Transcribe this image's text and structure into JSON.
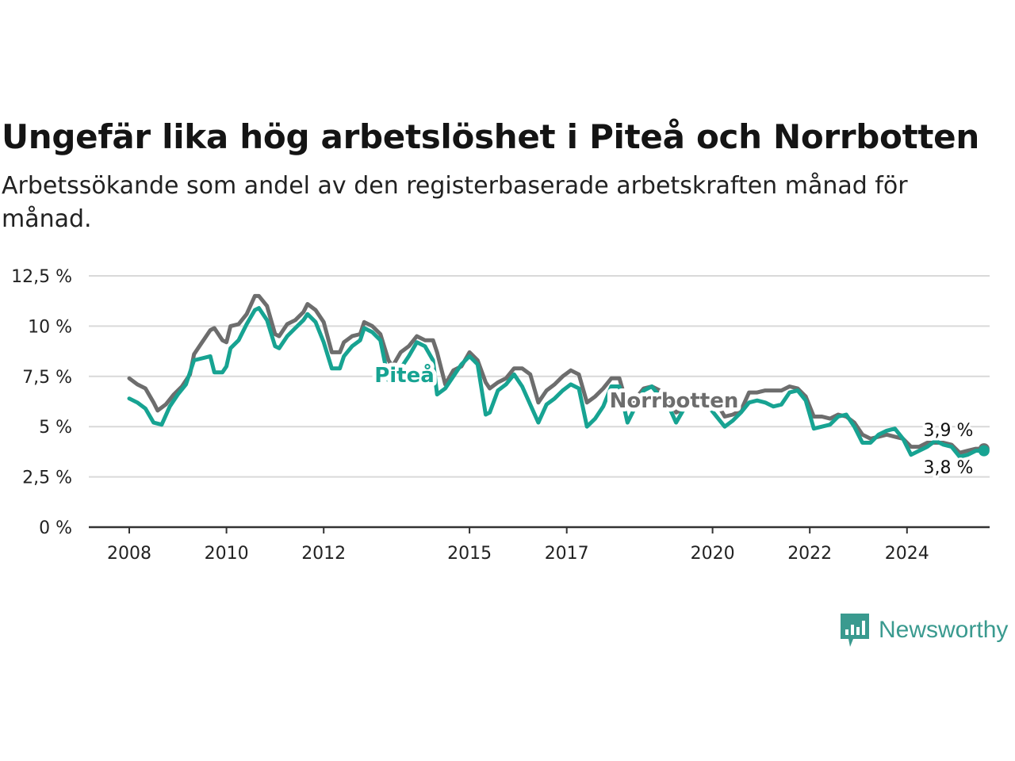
{
  "chart_data": {
    "type": "line",
    "title": "Ungefär lika hög arbetslöshet i Piteå och Norrbotten",
    "subtitle": "Arbetssökande som andel av den registerbaserade arbetskraften månad för månad.",
    "xlabel": "",
    "ylabel": "",
    "x_ticks": [
      "2008",
      "2010",
      "2012",
      "2015",
      "2017",
      "2020",
      "2022",
      "2024"
    ],
    "y_ticks": [
      "0 %",
      "2,5 %",
      "5 %",
      "7,5 %",
      "10 %",
      "12,5 %"
    ],
    "ylim": [
      0,
      12.5
    ],
    "grid": "horizontal",
    "series": [
      {
        "name": "Norrbotten",
        "color": "#6d6d6d",
        "points": [
          [
            "2008-01",
            7.4
          ],
          [
            "2008-03",
            7.1
          ],
          [
            "2008-05",
            6.9
          ],
          [
            "2008-07",
            6.2
          ],
          [
            "2008-08",
            5.8
          ],
          [
            "2008-10",
            6.1
          ],
          [
            "2008-12",
            6.6
          ],
          [
            "2009-02",
            7.0
          ],
          [
            "2009-04",
            7.6
          ],
          [
            "2009-05",
            8.6
          ],
          [
            "2009-07",
            9.2
          ],
          [
            "2009-09",
            9.8
          ],
          [
            "2009-10",
            9.9
          ],
          [
            "2009-12",
            9.3
          ],
          [
            "2010-01",
            9.2
          ],
          [
            "2010-02",
            10.0
          ],
          [
            "2010-04",
            10.1
          ],
          [
            "2010-06",
            10.6
          ],
          [
            "2010-08",
            11.5
          ],
          [
            "2010-09",
            11.5
          ],
          [
            "2010-11",
            11.0
          ],
          [
            "2011-01",
            9.6
          ],
          [
            "2011-02",
            9.5
          ],
          [
            "2011-04",
            10.1
          ],
          [
            "2011-06",
            10.3
          ],
          [
            "2011-08",
            10.7
          ],
          [
            "2011-09",
            11.1
          ],
          [
            "2011-11",
            10.8
          ],
          [
            "2012-01",
            10.2
          ],
          [
            "2012-03",
            8.7
          ],
          [
            "2012-05",
            8.7
          ],
          [
            "2012-06",
            9.2
          ],
          [
            "2012-08",
            9.5
          ],
          [
            "2012-10",
            9.6
          ],
          [
            "2012-11",
            10.2
          ],
          [
            "2013-01",
            10.0
          ],
          [
            "2013-03",
            9.6
          ],
          [
            "2013-05",
            8.3
          ],
          [
            "2013-06",
            8.0
          ],
          [
            "2013-08",
            8.7
          ],
          [
            "2013-10",
            9.0
          ],
          [
            "2013-12",
            9.5
          ],
          [
            "2014-02",
            9.3
          ],
          [
            "2014-04",
            9.3
          ],
          [
            "2014-05",
            8.7
          ],
          [
            "2014-07",
            7.1
          ],
          [
            "2014-09",
            7.8
          ],
          [
            "2014-11",
            8.0
          ],
          [
            "2015-01",
            8.7
          ],
          [
            "2015-03",
            8.3
          ],
          [
            "2015-05",
            7.2
          ],
          [
            "2015-06",
            6.9
          ],
          [
            "2015-08",
            7.2
          ],
          [
            "2015-10",
            7.4
          ],
          [
            "2015-12",
            7.9
          ],
          [
            "2016-02",
            7.9
          ],
          [
            "2016-04",
            7.6
          ],
          [
            "2016-06",
            6.2
          ],
          [
            "2016-08",
            6.8
          ],
          [
            "2016-10",
            7.1
          ],
          [
            "2016-12",
            7.5
          ],
          [
            "2017-02",
            7.8
          ],
          [
            "2017-04",
            7.6
          ],
          [
            "2017-06",
            6.2
          ],
          [
            "2017-08",
            6.5
          ],
          [
            "2017-10",
            6.9
          ],
          [
            "2017-12",
            7.4
          ],
          [
            "2018-02",
            7.4
          ],
          [
            "2018-04",
            6.0
          ],
          [
            "2018-06",
            6.4
          ],
          [
            "2018-08",
            6.9
          ],
          [
            "2018-10",
            7.0
          ],
          [
            "2018-12",
            6.8
          ],
          [
            "2019-02",
            6.6
          ],
          [
            "2019-04",
            5.7
          ],
          [
            "2019-06",
            5.9
          ],
          [
            "2019-08",
            6.1
          ],
          [
            "2019-10",
            6.5
          ],
          [
            "2019-12",
            6.4
          ],
          [
            "2020-02",
            6.2
          ],
          [
            "2020-04",
            5.5
          ],
          [
            "2020-06",
            5.6
          ],
          [
            "2020-08",
            5.8
          ],
          [
            "2020-10",
            6.7
          ],
          [
            "2020-12",
            6.7
          ],
          [
            "2021-02",
            6.8
          ],
          [
            "2021-04",
            6.8
          ],
          [
            "2021-06",
            6.8
          ],
          [
            "2021-08",
            7.0
          ],
          [
            "2021-10",
            6.9
          ],
          [
            "2021-12",
            6.5
          ],
          [
            "2022-02",
            5.5
          ],
          [
            "2022-04",
            5.5
          ],
          [
            "2022-06",
            5.4
          ],
          [
            "2022-08",
            5.6
          ],
          [
            "2022-10",
            5.5
          ],
          [
            "2022-12",
            5.2
          ],
          [
            "2023-02",
            4.6
          ],
          [
            "2023-04",
            4.4
          ],
          [
            "2023-06",
            4.5
          ],
          [
            "2023-08",
            4.6
          ],
          [
            "2023-10",
            4.5
          ],
          [
            "2023-12",
            4.4
          ],
          [
            "2024-02",
            4.0
          ],
          [
            "2024-04",
            4.0
          ],
          [
            "2024-06",
            4.2
          ],
          [
            "2024-08",
            4.2
          ],
          [
            "2024-10",
            4.2
          ],
          [
            "2024-12",
            4.1
          ],
          [
            "2025-02",
            3.7
          ],
          [
            "2025-04",
            3.8
          ],
          [
            "2025-06",
            3.9
          ],
          [
            "2025-08",
            3.9
          ]
        ]
      },
      {
        "name": "Piteå",
        "color": "#17a392",
        "points": [
          [
            "2008-01",
            6.4
          ],
          [
            "2008-03",
            6.2
          ],
          [
            "2008-05",
            5.9
          ],
          [
            "2008-07",
            5.2
          ],
          [
            "2008-09",
            5.1
          ],
          [
            "2008-11",
            6.0
          ],
          [
            "2009-01",
            6.6
          ],
          [
            "2009-03",
            7.1
          ],
          [
            "2009-05",
            8.3
          ],
          [
            "2009-07",
            8.4
          ],
          [
            "2009-09",
            8.5
          ],
          [
            "2009-10",
            7.7
          ],
          [
            "2009-12",
            7.7
          ],
          [
            "2010-01",
            8.0
          ],
          [
            "2010-02",
            8.9
          ],
          [
            "2010-04",
            9.3
          ],
          [
            "2010-06",
            10.1
          ],
          [
            "2010-08",
            10.8
          ],
          [
            "2010-09",
            10.9
          ],
          [
            "2010-11",
            10.3
          ],
          [
            "2011-01",
            9.0
          ],
          [
            "2011-02",
            8.9
          ],
          [
            "2011-04",
            9.5
          ],
          [
            "2011-06",
            9.9
          ],
          [
            "2011-08",
            10.3
          ],
          [
            "2011-09",
            10.6
          ],
          [
            "2011-11",
            10.2
          ],
          [
            "2012-01",
            9.2
          ],
          [
            "2012-03",
            7.9
          ],
          [
            "2012-05",
            7.9
          ],
          [
            "2012-06",
            8.5
          ],
          [
            "2012-08",
            9.0
          ],
          [
            "2012-10",
            9.3
          ],
          [
            "2012-11",
            9.9
          ],
          [
            "2013-01",
            9.7
          ],
          [
            "2013-03",
            9.3
          ],
          [
            "2013-05",
            7.3
          ],
          [
            "2013-06",
            7.3
          ],
          [
            "2013-08",
            7.9
          ],
          [
            "2013-10",
            8.5
          ],
          [
            "2013-12",
            9.2
          ],
          [
            "2014-02",
            9.0
          ],
          [
            "2014-04",
            8.3
          ],
          [
            "2014-05",
            6.6
          ],
          [
            "2014-07",
            6.9
          ],
          [
            "2014-09",
            7.5
          ],
          [
            "2014-11",
            8.1
          ],
          [
            "2015-01",
            8.5
          ],
          [
            "2015-03",
            8.1
          ],
          [
            "2015-05",
            5.6
          ],
          [
            "2015-06",
            5.7
          ],
          [
            "2015-08",
            6.8
          ],
          [
            "2015-10",
            7.1
          ],
          [
            "2015-12",
            7.6
          ],
          [
            "2016-02",
            7.0
          ],
          [
            "2016-04",
            6.1
          ],
          [
            "2016-06",
            5.2
          ],
          [
            "2016-08",
            6.1
          ],
          [
            "2016-10",
            6.4
          ],
          [
            "2016-12",
            6.8
          ],
          [
            "2017-02",
            7.1
          ],
          [
            "2017-04",
            6.9
          ],
          [
            "2017-06",
            5.0
          ],
          [
            "2017-08",
            5.4
          ],
          [
            "2017-10",
            6.0
          ],
          [
            "2017-12",
            7.0
          ],
          [
            "2018-02",
            7.0
          ],
          [
            "2018-04",
            5.2
          ],
          [
            "2018-06",
            6.0
          ],
          [
            "2018-08",
            6.8
          ],
          [
            "2018-10",
            7.0
          ],
          [
            "2018-12",
            6.5
          ],
          [
            "2019-02",
            6.1
          ],
          [
            "2019-04",
            5.2
          ],
          [
            "2019-06",
            5.9
          ],
          [
            "2019-08",
            6.2
          ],
          [
            "2019-10",
            6.4
          ],
          [
            "2019-12",
            6.0
          ],
          [
            "2020-02",
            5.5
          ],
          [
            "2020-04",
            5.0
          ],
          [
            "2020-06",
            5.3
          ],
          [
            "2020-08",
            5.7
          ],
          [
            "2020-10",
            6.2
          ],
          [
            "2020-12",
            6.3
          ],
          [
            "2021-02",
            6.2
          ],
          [
            "2021-04",
            6.0
          ],
          [
            "2021-06",
            6.1
          ],
          [
            "2021-08",
            6.7
          ],
          [
            "2021-10",
            6.8
          ],
          [
            "2021-12",
            6.3
          ],
          [
            "2022-02",
            4.9
          ],
          [
            "2022-04",
            5.0
          ],
          [
            "2022-06",
            5.1
          ],
          [
            "2022-08",
            5.5
          ],
          [
            "2022-10",
            5.6
          ],
          [
            "2022-12",
            5.0
          ],
          [
            "2023-02",
            4.2
          ],
          [
            "2023-04",
            4.2
          ],
          [
            "2023-06",
            4.6
          ],
          [
            "2023-08",
            4.8
          ],
          [
            "2023-10",
            4.9
          ],
          [
            "2023-12",
            4.4
          ],
          [
            "2024-02",
            3.6
          ],
          [
            "2024-04",
            3.8
          ],
          [
            "2024-06",
            4.0
          ],
          [
            "2024-08",
            4.3
          ],
          [
            "2024-10",
            4.1
          ],
          [
            "2024-12",
            4.0
          ],
          [
            "2025-02",
            3.5
          ],
          [
            "2025-04",
            3.6
          ],
          [
            "2025-06",
            3.8
          ],
          [
            "2025-08",
            3.8
          ]
        ]
      }
    ],
    "end_labels": {
      "top": "3,9 %",
      "bottom": "3,8 %"
    }
  },
  "brand": {
    "name": "Newsworthy",
    "icon": "bar-chart-speech-bubble-icon",
    "color": "#3a9a8f"
  }
}
